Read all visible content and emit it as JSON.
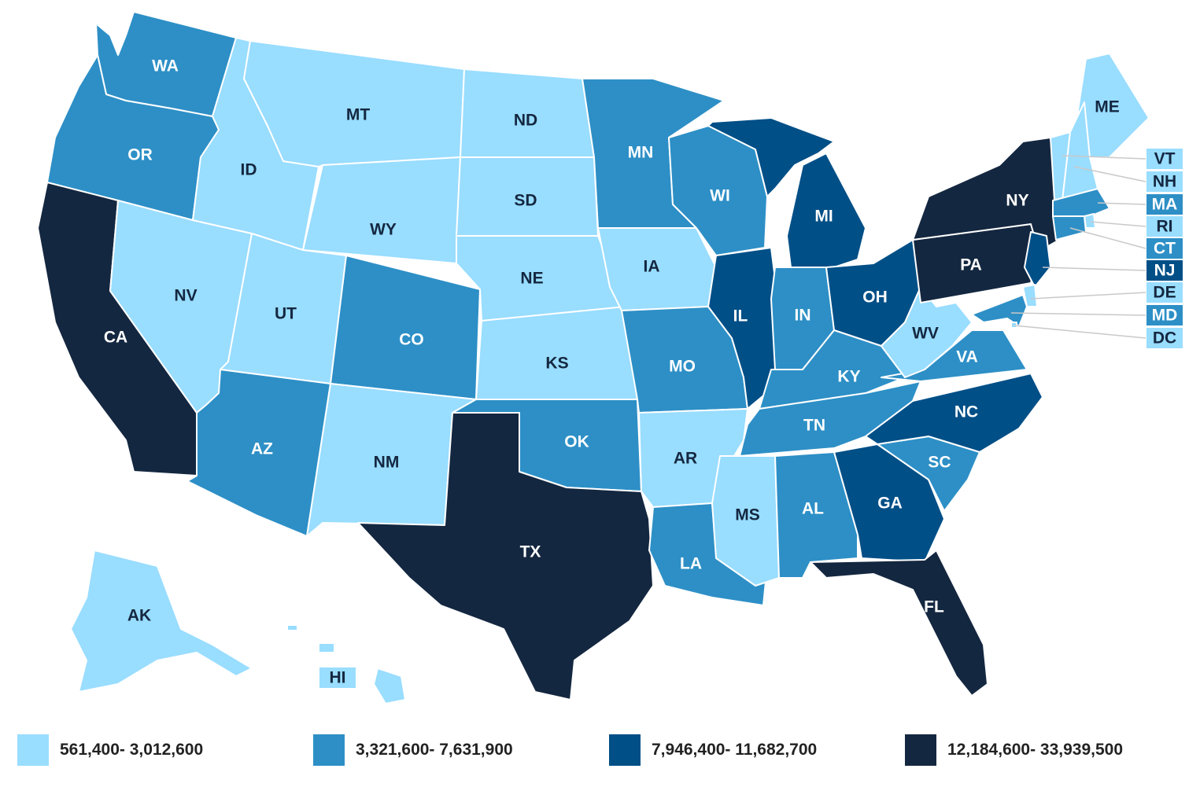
{
  "colors": {
    "tier1": "#99ddff",
    "tier2": "#2d8fc6",
    "tier3": "#004f87",
    "tier4": "#142740",
    "label_dark": "#142740",
    "label_light": "#ffffff"
  },
  "legend": [
    {
      "label": "561,400- 3,012,600",
      "color": "#99ddff"
    },
    {
      "label": "3,321,600- 7,631,900",
      "color": "#2d8fc6"
    },
    {
      "label": "7,946,400- 11,682,700",
      "color": "#004f87"
    },
    {
      "label": "12,184,600- 33,939,500",
      "color": "#142740"
    }
  ],
  "states": [
    {
      "code": "WA",
      "tier": 2
    },
    {
      "code": "OR",
      "tier": 2
    },
    {
      "code": "CA",
      "tier": 4
    },
    {
      "code": "NV",
      "tier": 1
    },
    {
      "code": "ID",
      "tier": 1
    },
    {
      "code": "MT",
      "tier": 1
    },
    {
      "code": "WY",
      "tier": 1
    },
    {
      "code": "UT",
      "tier": 1
    },
    {
      "code": "AZ",
      "tier": 2
    },
    {
      "code": "CO",
      "tier": 2
    },
    {
      "code": "NM",
      "tier": 1
    },
    {
      "code": "ND",
      "tier": 1
    },
    {
      "code": "SD",
      "tier": 1
    },
    {
      "code": "NE",
      "tier": 1
    },
    {
      "code": "KS",
      "tier": 1
    },
    {
      "code": "OK",
      "tier": 2
    },
    {
      "code": "TX",
      "tier": 4
    },
    {
      "code": "MN",
      "tier": 2
    },
    {
      "code": "IA",
      "tier": 1
    },
    {
      "code": "MO",
      "tier": 2
    },
    {
      "code": "AR",
      "tier": 1
    },
    {
      "code": "LA",
      "tier": 2
    },
    {
      "code": "WI",
      "tier": 2
    },
    {
      "code": "IL",
      "tier": 3
    },
    {
      "code": "MI",
      "tier": 3
    },
    {
      "code": "IN",
      "tier": 2
    },
    {
      "code": "OH",
      "tier": 3
    },
    {
      "code": "KY",
      "tier": 2
    },
    {
      "code": "TN",
      "tier": 2
    },
    {
      "code": "MS",
      "tier": 1
    },
    {
      "code": "AL",
      "tier": 2
    },
    {
      "code": "GA",
      "tier": 3
    },
    {
      "code": "FL",
      "tier": 4
    },
    {
      "code": "SC",
      "tier": 2
    },
    {
      "code": "NC",
      "tier": 3
    },
    {
      "code": "VA",
      "tier": 2
    },
    {
      "code": "WV",
      "tier": 1
    },
    {
      "code": "PA",
      "tier": 4
    },
    {
      "code": "NY",
      "tier": 4
    },
    {
      "code": "ME",
      "tier": 1
    },
    {
      "code": "AK",
      "tier": 1
    },
    {
      "code": "HI",
      "tier": 1
    },
    {
      "code": "VT",
      "tier": 1
    },
    {
      "code": "NH",
      "tier": 1
    },
    {
      "code": "MA",
      "tier": 2
    },
    {
      "code": "RI",
      "tier": 1
    },
    {
      "code": "CT",
      "tier": 2
    },
    {
      "code": "NJ",
      "tier": 3
    },
    {
      "code": "DE",
      "tier": 1
    },
    {
      "code": "MD",
      "tier": 2
    },
    {
      "code": "DC",
      "tier": 1
    }
  ]
}
